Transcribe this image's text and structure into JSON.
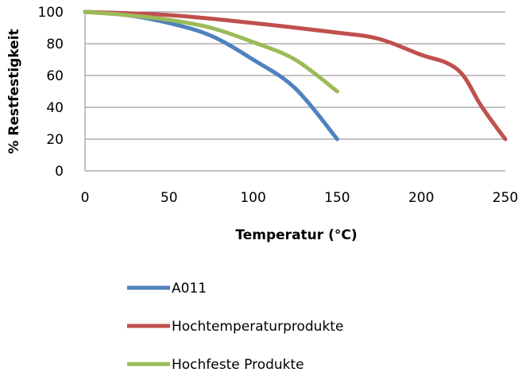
{
  "chart_data": {
    "type": "line",
    "title": "",
    "xlabel": "Temperatur (°C)",
    "ylabel": "% Restfestigkeit",
    "xlim": [
      0,
      250
    ],
    "ylim": [
      0,
      100
    ],
    "x_ticks": [
      0,
      50,
      100,
      150,
      200,
      250
    ],
    "y_ticks": [
      0,
      20,
      40,
      60,
      80,
      100
    ],
    "grid": "horizontal",
    "legend_position": "bottom",
    "series": [
      {
        "name": "A011",
        "color": "#4F81BD",
        "points": [
          [
            0,
            100
          ],
          [
            25,
            98
          ],
          [
            50,
            93
          ],
          [
            75,
            85
          ],
          [
            100,
            70
          ],
          [
            125,
            52
          ],
          [
            150,
            20
          ]
        ]
      },
      {
        "name": "Hochtemperaturprodukte",
        "color": "#C0504D",
        "points": [
          [
            0,
            100
          ],
          [
            50,
            98
          ],
          [
            100,
            93
          ],
          [
            150,
            87
          ],
          [
            175,
            83
          ],
          [
            200,
            73
          ],
          [
            215,
            68
          ],
          [
            225,
            60
          ],
          [
            235,
            42
          ],
          [
            245,
            27
          ],
          [
            250,
            20
          ]
        ]
      },
      {
        "name": "Hochfeste Produkte",
        "color": "#9BBB59",
        "points": [
          [
            0,
            100
          ],
          [
            25,
            98
          ],
          [
            50,
            95
          ],
          [
            75,
            90
          ],
          [
            100,
            81
          ],
          [
            125,
            70
          ],
          [
            150,
            50
          ]
        ]
      }
    ]
  }
}
